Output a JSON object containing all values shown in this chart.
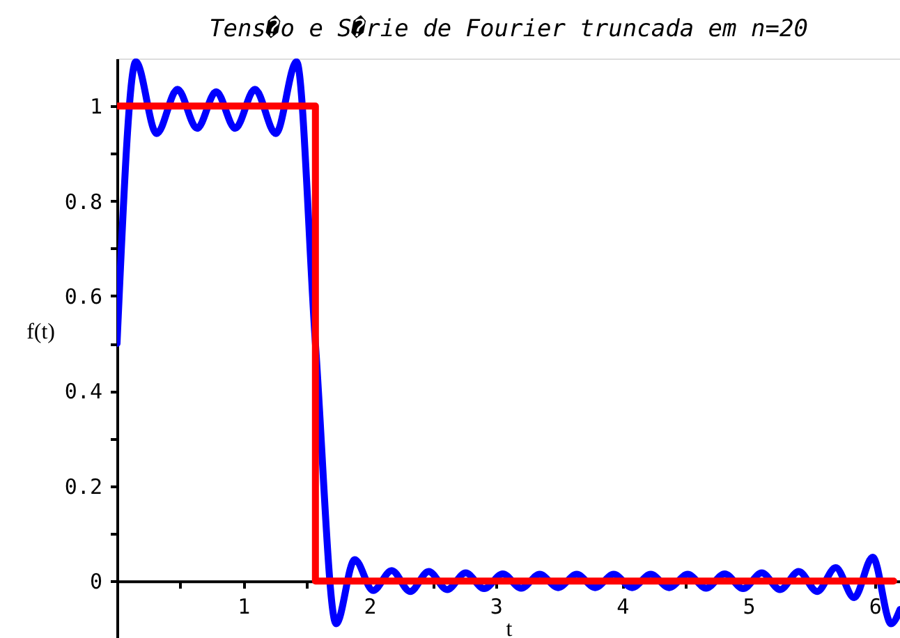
{
  "chart_data": {
    "type": "line",
    "title": "Tens�o e S�rie de Fourier truncada em n=20",
    "xlabel": "t",
    "ylabel": "f(t)",
    "xlim": [
      0,
      6.2
    ],
    "ylim": [
      -0.12,
      1.1
    ],
    "xticks": [
      {
        "value": 0.5,
        "label": null
      },
      1,
      {
        "value": 1.5,
        "label": null
      },
      2,
      {
        "value": 2.5,
        "label": null
      },
      3,
      {
        "value": 3.5,
        "label": null
      },
      4,
      {
        "value": 4.5,
        "label": null
      },
      5,
      {
        "value": 5.5,
        "label": null
      },
      6
    ],
    "yticks": [
      0,
      {
        "value": 0.1,
        "label": null
      },
      0.2,
      {
        "value": 0.3,
        "label": null
      },
      0.4,
      {
        "value": 0.5,
        "label": null
      },
      0.6,
      {
        "value": 0.7,
        "label": null
      },
      0.8,
      {
        "value": 0.9,
        "label": null
      },
      1
    ],
    "grid": false,
    "legend": false,
    "marker": "none",
    "line_style": "solid",
    "series": [
      {
        "color": "#0000ff",
        "x": [
          0,
          0.149,
          0.314,
          0.479,
          0.634,
          0.785,
          0.936,
          1.092,
          1.257,
          1.422,
          1.571,
          1.735,
          1.882,
          2.028,
          2.175,
          2.321,
          2.468,
          2.614,
          2.761,
          2.907,
          3.054,
          3.2,
          3.347,
          3.493,
          3.64,
          3.786,
          3.933,
          4.079,
          4.226,
          4.372,
          4.519,
          4.665,
          4.812,
          4.958,
          5.105,
          5.251,
          5.398,
          5.544,
          5.691,
          5.837,
          5.984,
          6.13,
          6.2
        ],
        "values": [
          0.5,
          1.093,
          0.942,
          1.035,
          0.953,
          1.03,
          0.953,
          1.035,
          0.942,
          1.093,
          0.5,
          -0.09,
          0.045,
          -0.02,
          0.022,
          -0.022,
          0.02,
          -0.018,
          0.017,
          -0.016,
          0.015,
          -0.015,
          0.014,
          -0.014,
          0.014,
          -0.014,
          0.014,
          -0.014,
          0.014,
          -0.014,
          0.014,
          -0.015,
          0.015,
          -0.016,
          0.017,
          -0.018,
          0.02,
          -0.022,
          0.028,
          -0.035,
          0.05,
          -0.09,
          -0.06
        ]
      },
      {
        "color": "#ff0000",
        "x": [
          0,
          1.571,
          1.571,
          6.15
        ],
        "values": [
          1,
          1,
          0,
          0
        ]
      }
    ]
  }
}
